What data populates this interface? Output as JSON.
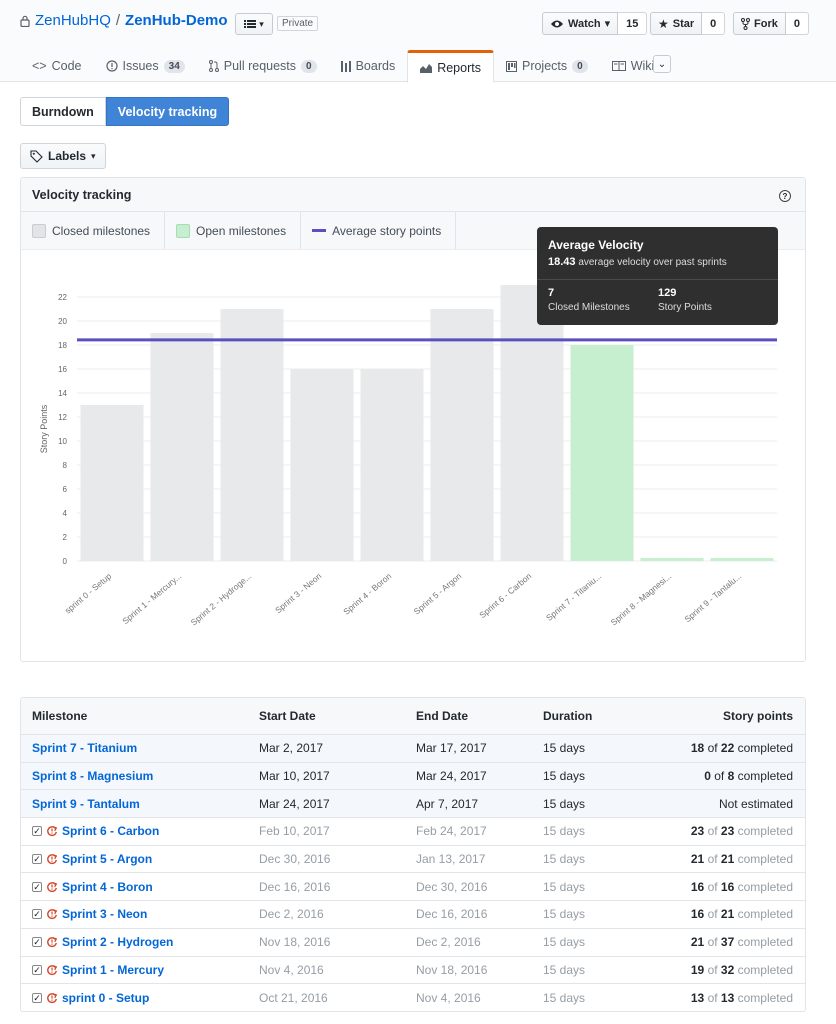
{
  "repo": {
    "owner": "ZenHubHQ",
    "name": "ZenHub-Demo",
    "visibility": "Private"
  },
  "actions": {
    "watch_label": "Watch",
    "watch_count": "15",
    "star_label": "Star",
    "star_count": "0",
    "fork_label": "Fork",
    "fork_count": "0"
  },
  "tabs": [
    {
      "label": "Code",
      "icon": "code-icon"
    },
    {
      "label": "Issues",
      "count": "34",
      "icon": "issue-icon"
    },
    {
      "label": "Pull requests",
      "count": "0",
      "icon": "pull-request-icon"
    },
    {
      "label": "Boards",
      "icon": "boards-icon"
    },
    {
      "label": "Reports",
      "icon": "graph-icon",
      "selected": true
    },
    {
      "label": "Projects",
      "count": "0",
      "icon": "project-icon"
    },
    {
      "label": "Wiki",
      "icon": "book-icon"
    }
  ],
  "report_types": {
    "burndown": "Burndown",
    "velocity": "Velocity tracking"
  },
  "labels_button": "Labels",
  "panel": {
    "title": "Velocity tracking",
    "legend": {
      "closed": "Closed milestones",
      "open": "Open milestones",
      "average": "Average story points"
    }
  },
  "tooltip": {
    "title": "Average Velocity",
    "value": "18.43",
    "text": "average velocity over past sprints",
    "stat1_value": "7",
    "stat1_label": "Closed Milestones",
    "stat2_value": "129",
    "stat2_label": "Story Points"
  },
  "colors": {
    "closed": "#e8e9eb",
    "open": "#c6efcf",
    "average": "#5a4fbf",
    "link": "#0366d6",
    "active_toggle": "#3f84d6"
  },
  "chart_data": {
    "type": "bar",
    "ylabel": "Story Points",
    "ylim": [
      0,
      22
    ],
    "yticks": [
      0,
      2,
      4,
      6,
      8,
      10,
      12,
      14,
      16,
      18,
      20,
      22
    ],
    "categories": [
      "sprint 0 - Setup",
      "Sprint 1 - Mercury...",
      "Sprint 2 - Hydroge...",
      "Sprint 3 - Neon",
      "Sprint 4 - Boron",
      "Sprint 5 - Argon",
      "Sprint 6 - Carbon",
      "Sprint 7 - Titaniu...",
      "Sprint 8 - Magnesi...",
      "Sprint 9 - Tantalu..."
    ],
    "values": [
      13,
      19,
      21,
      16,
      16,
      21,
      23,
      18,
      0,
      0
    ],
    "status": [
      "closed",
      "closed",
      "closed",
      "closed",
      "closed",
      "closed",
      "closed",
      "open",
      "open",
      "open"
    ],
    "average": 18.43,
    "grid": true
  },
  "table": {
    "headers": {
      "milestone": "Milestone",
      "start": "Start Date",
      "end": "End Date",
      "duration": "Duration",
      "points": "Story points"
    },
    "rows": [
      {
        "name": "Sprint 7 - Titanium",
        "start": "Mar 2, 2017",
        "end": "Mar 17, 2017",
        "duration": "15 days",
        "done": "18",
        "of": "of",
        "total": "22",
        "suffix": "completed",
        "closed": false
      },
      {
        "name": "Sprint 8 - Magnesium",
        "start": "Mar 10, 2017",
        "end": "Mar 24, 2017",
        "duration": "15 days",
        "done": "0",
        "of": "of",
        "total": "8",
        "suffix": "completed",
        "closed": false
      },
      {
        "name": "Sprint 9 - Tantalum",
        "start": "Mar 24, 2017",
        "end": "Apr 7, 2017",
        "duration": "15 days",
        "plain": "Not estimated",
        "closed": false
      },
      {
        "name": "Sprint 6 - Carbon",
        "start": "Feb 10, 2017",
        "end": "Feb 24, 2017",
        "duration": "15 days",
        "done": "23",
        "of": "of",
        "total": "23",
        "suffix": "completed",
        "closed": true
      },
      {
        "name": "Sprint 5 - Argon",
        "start": "Dec 30, 2016",
        "end": "Jan 13, 2017",
        "duration": "15 days",
        "done": "21",
        "of": "of",
        "total": "21",
        "suffix": "completed",
        "closed": true
      },
      {
        "name": "Sprint 4 - Boron",
        "start": "Dec 16, 2016",
        "end": "Dec 30, 2016",
        "duration": "15 days",
        "done": "16",
        "of": "of",
        "total": "16",
        "suffix": "completed",
        "closed": true
      },
      {
        "name": "Sprint 3 - Neon",
        "start": "Dec 2, 2016",
        "end": "Dec 16, 2016",
        "duration": "15 days",
        "done": "16",
        "of": "of",
        "total": "21",
        "suffix": "completed",
        "closed": true
      },
      {
        "name": "Sprint 2 - Hydrogen",
        "start": "Nov 18, 2016",
        "end": "Dec 2, 2016",
        "duration": "15 days",
        "done": "21",
        "of": "of",
        "total": "37",
        "suffix": "completed",
        "closed": true
      },
      {
        "name": "Sprint 1 - Mercury",
        "start": "Nov 4, 2016",
        "end": "Nov 18, 2016",
        "duration": "15 days",
        "done": "19",
        "of": "of",
        "total": "32",
        "suffix": "completed",
        "closed": true
      },
      {
        "name": "sprint 0 - Setup",
        "start": "Oct 21, 2016",
        "end": "Nov 4, 2016",
        "duration": "15 days",
        "done": "13",
        "of": "of",
        "total": "13",
        "suffix": "completed",
        "closed": true
      }
    ]
  }
}
